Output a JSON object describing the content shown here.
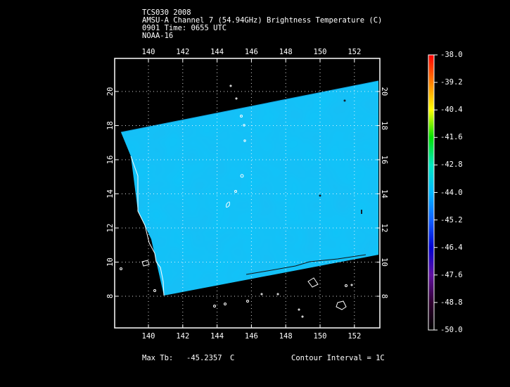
{
  "header": {
    "storm": "TCS030 2008",
    "product": "AMSU-A Channel 7 (54.94GHz) Brightness Temperature (C)",
    "datetime": "0901 Time: 0655 UTC",
    "satellite": "NOAA-16"
  },
  "map": {
    "lon_ticks": [
      "140",
      "142",
      "144",
      "146",
      "148",
      "150",
      "152"
    ],
    "lat_ticks": [
      "8",
      "10",
      "12",
      "14",
      "16",
      "18",
      "20"
    ]
  },
  "colorbar": {
    "labels": [
      "-38.0",
      "-39.2",
      "-40.4",
      "-41.6",
      "-42.8",
      "-44.0",
      "-45.2",
      "-46.4",
      "-47.6",
      "-48.8",
      "-50.0"
    ],
    "colors": [
      "#ff0000",
      "#ff8000",
      "#ffff00",
      "#00e000",
      "#00e8c0",
      "#00b8ff",
      "#1060ff",
      "#0000d0",
      "#6010a0",
      "#300030",
      "#000000"
    ]
  },
  "footer": {
    "max_label": "Max Tb:",
    "max_value": "-45.2357",
    "max_unit": "C",
    "contour": "Contour Interval = 1C"
  }
}
